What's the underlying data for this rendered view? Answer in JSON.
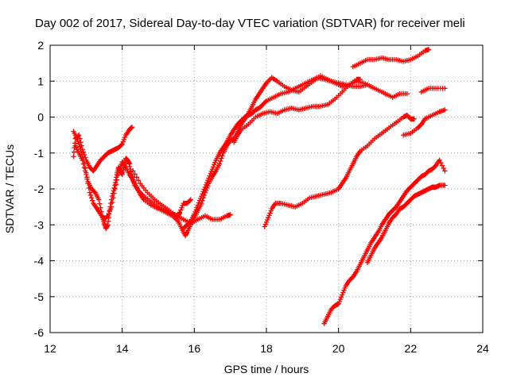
{
  "chart_data": {
    "type": "scatter",
    "title": "Day 002 of 2017, Sidereal Day-to-day VTEC variation (SDTVAR) for receiver meli",
    "xlabel": "GPS time / hours",
    "ylabel": "SDTVAR / TECUs",
    "xlim": [
      12,
      24
    ],
    "ylim": [
      -6,
      2
    ],
    "x_ticks": [
      12,
      14,
      16,
      18,
      20,
      22,
      24
    ],
    "y_ticks": [
      2,
      1,
      0,
      -1,
      -2,
      -3,
      -4,
      -5,
      -6
    ],
    "x_tick_labels": [
      "12",
      "14",
      "16",
      "18",
      "20",
      "22",
      "24"
    ],
    "y_tick_labels": [
      "2",
      "1",
      "0",
      "-1",
      "-2",
      "-3",
      "-4",
      "-5",
      "-6"
    ],
    "grid": true,
    "marker": "+",
    "color": "#ff0000",
    "series": [
      {
        "points": [
          [
            12.65,
            -1.1
          ],
          [
            12.7,
            -0.6
          ],
          [
            12.8,
            -0.5
          ],
          [
            12.9,
            -0.9
          ],
          [
            13.0,
            -1.2
          ],
          [
            13.1,
            -1.4
          ],
          [
            13.2,
            -1.5
          ],
          [
            13.3,
            -1.35
          ],
          [
            13.4,
            -1.2
          ],
          [
            13.5,
            -1.1
          ],
          [
            13.6,
            -1.0
          ],
          [
            13.7,
            -0.95
          ],
          [
            13.8,
            -0.9
          ],
          [
            13.9,
            -0.85
          ],
          [
            14.0,
            -0.75
          ],
          [
            14.1,
            -0.5
          ],
          [
            14.2,
            -0.35
          ],
          [
            14.27,
            -0.28
          ]
        ]
      },
      {
        "points": [
          [
            12.65,
            -0.4
          ],
          [
            12.75,
            -0.6
          ],
          [
            12.85,
            -0.9
          ],
          [
            12.95,
            -1.3
          ],
          [
            13.05,
            -1.8
          ],
          [
            13.15,
            -2.0
          ],
          [
            13.25,
            -2.1
          ],
          [
            13.35,
            -2.3
          ],
          [
            13.45,
            -2.75
          ],
          [
            13.5,
            -2.95
          ],
          [
            13.55,
            -3.1
          ],
          [
            13.6,
            -3.0
          ],
          [
            13.65,
            -2.6
          ],
          [
            13.72,
            -2.2
          ],
          [
            13.8,
            -1.9
          ],
          [
            13.85,
            -1.6
          ],
          [
            13.9,
            -1.4
          ],
          [
            13.95,
            -1.5
          ],
          [
            14.0,
            -1.6
          ],
          [
            14.05,
            -1.35
          ],
          [
            14.1,
            -1.15
          ],
          [
            14.15,
            -1.2
          ],
          [
            14.2,
            -1.3
          ],
          [
            14.25,
            -1.6
          ],
          [
            14.3,
            -1.75
          ],
          [
            14.35,
            -1.9
          ],
          [
            14.45,
            -2.05
          ],
          [
            14.6,
            -2.2
          ],
          [
            14.8,
            -2.35
          ],
          [
            15.0,
            -2.5
          ],
          [
            15.2,
            -2.6
          ],
          [
            15.4,
            -2.7
          ],
          [
            15.55,
            -2.75
          ],
          [
            15.6,
            -2.65
          ],
          [
            15.7,
            -2.4
          ],
          [
            15.8,
            -2.4
          ],
          [
            15.9,
            -2.3
          ]
        ]
      },
      {
        "points": [
          [
            12.7,
            -0.8
          ],
          [
            12.8,
            -1.0
          ],
          [
            12.9,
            -1.2
          ],
          [
            13.0,
            -1.6
          ],
          [
            13.1,
            -2.1
          ],
          [
            13.2,
            -2.4
          ],
          [
            13.3,
            -2.55
          ],
          [
            13.4,
            -2.7
          ],
          [
            13.5,
            -2.85
          ],
          [
            13.6,
            -2.75
          ],
          [
            13.7,
            -2.5
          ],
          [
            13.8,
            -2.0
          ],
          [
            13.9,
            -1.5
          ],
          [
            14.0,
            -1.25
          ],
          [
            14.1,
            -1.4
          ],
          [
            14.2,
            -1.6
          ],
          [
            14.3,
            -1.75
          ],
          [
            14.4,
            -1.95
          ],
          [
            14.5,
            -2.15
          ],
          [
            14.6,
            -2.3
          ],
          [
            14.8,
            -2.45
          ],
          [
            15.0,
            -2.55
          ],
          [
            15.2,
            -2.65
          ],
          [
            15.4,
            -2.75
          ],
          [
            15.55,
            -2.9
          ],
          [
            15.65,
            -3.1
          ],
          [
            15.75,
            -3.3
          ],
          [
            15.8,
            -3.2
          ],
          [
            15.9,
            -3.0
          ],
          [
            16.0,
            -2.8
          ],
          [
            16.1,
            -2.6
          ],
          [
            16.2,
            -2.4
          ],
          [
            16.3,
            -2.1
          ],
          [
            16.4,
            -1.85
          ],
          [
            16.5,
            -1.65
          ],
          [
            16.6,
            -1.5
          ],
          [
            16.7,
            -1.3
          ],
          [
            16.8,
            -1.0
          ],
          [
            16.9,
            -0.8
          ],
          [
            17.0,
            -0.65
          ],
          [
            17.1,
            -0.6
          ],
          [
            17.2,
            -0.4
          ],
          [
            17.3,
            -0.2
          ],
          [
            17.4,
            -0.05
          ],
          [
            17.5,
            0.1
          ],
          [
            17.6,
            0.3
          ],
          [
            17.7,
            0.5
          ],
          [
            17.8,
            0.65
          ],
          [
            17.9,
            0.8
          ],
          [
            18.0,
            0.95
          ],
          [
            18.15,
            1.1
          ],
          [
            18.3,
            1.0
          ],
          [
            18.5,
            0.85
          ],
          [
            18.7,
            0.75
          ],
          [
            18.9,
            0.7
          ],
          [
            19.1,
            0.85
          ],
          [
            19.3,
            1.0
          ],
          [
            19.5,
            1.15
          ],
          [
            19.7,
            1.05
          ],
          [
            19.9,
            0.95
          ],
          [
            20.1,
            0.85
          ],
          [
            20.3,
            0.9
          ],
          [
            20.5,
            1.0
          ],
          [
            20.7,
            0.95
          ],
          [
            20.9,
            0.85
          ],
          [
            21.1,
            0.75
          ],
          [
            21.3,
            0.65
          ],
          [
            21.5,
            0.55
          ],
          [
            21.7,
            0.65
          ],
          [
            21.9,
            0.65
          ]
        ]
      },
      {
        "points": [
          [
            14.3,
            -1.5
          ],
          [
            14.5,
            -1.85
          ],
          [
            14.7,
            -2.1
          ],
          [
            14.9,
            -2.3
          ],
          [
            15.1,
            -2.45
          ],
          [
            15.3,
            -2.6
          ],
          [
            15.5,
            -2.75
          ],
          [
            15.7,
            -2.85
          ],
          [
            15.9,
            -2.95
          ],
          [
            16.1,
            -2.85
          ],
          [
            16.3,
            -2.75
          ],
          [
            16.5,
            -2.85
          ],
          [
            16.7,
            -2.85
          ],
          [
            16.9,
            -2.75
          ],
          [
            17.0,
            -2.72
          ]
        ]
      },
      {
        "points": [
          [
            15.7,
            -3.1
          ],
          [
            15.8,
            -3.0
          ],
          [
            15.9,
            -2.9
          ],
          [
            16.0,
            -2.7
          ],
          [
            16.1,
            -2.45
          ],
          [
            16.2,
            -2.2
          ],
          [
            16.3,
            -1.95
          ],
          [
            16.4,
            -1.7
          ],
          [
            16.5,
            -1.45
          ],
          [
            16.6,
            -1.2
          ],
          [
            16.7,
            -1.0
          ],
          [
            16.8,
            -0.85
          ],
          [
            16.9,
            -0.7
          ],
          [
            17.0,
            -0.5
          ],
          [
            17.1,
            -0.35
          ],
          [
            17.2,
            -0.2
          ],
          [
            17.3,
            -0.1
          ],
          [
            17.4,
            0.0
          ],
          [
            17.5,
            0.05
          ],
          [
            17.6,
            0.1
          ],
          [
            17.7,
            0.2
          ],
          [
            17.8,
            0.25
          ],
          [
            17.9,
            0.35
          ],
          [
            18.0,
            0.45
          ],
          [
            18.2,
            0.55
          ],
          [
            18.4,
            0.65
          ],
          [
            18.6,
            0.7
          ],
          [
            18.8,
            0.8
          ],
          [
            19.0,
            0.9
          ],
          [
            19.2,
            1.0
          ],
          [
            19.4,
            1.1
          ],
          [
            19.6,
            1.05
          ],
          [
            19.8,
            1.0
          ],
          [
            20.0,
            0.95
          ],
          [
            20.2,
            0.9
          ],
          [
            20.4,
            0.85
          ],
          [
            20.6,
            0.85
          ],
          [
            20.8,
            0.9
          ]
        ]
      },
      {
        "points": [
          [
            17.1,
            -0.7
          ],
          [
            17.2,
            -0.5
          ],
          [
            17.3,
            -0.35
          ],
          [
            17.5,
            -0.2
          ],
          [
            17.7,
            0.0
          ],
          [
            17.9,
            0.1
          ],
          [
            18.1,
            0.15
          ],
          [
            18.3,
            0.1
          ],
          [
            18.5,
            0.2
          ],
          [
            18.7,
            0.25
          ],
          [
            18.9,
            0.2
          ],
          [
            19.1,
            0.25
          ],
          [
            19.3,
            0.3
          ],
          [
            19.5,
            0.3
          ],
          [
            19.7,
            0.35
          ],
          [
            19.9,
            0.5
          ],
          [
            20.1,
            0.7
          ],
          [
            20.3,
            0.9
          ],
          [
            20.5,
            1.05
          ],
          [
            20.6,
            1.05
          ]
        ]
      },
      {
        "points": [
          [
            20.4,
            1.4
          ],
          [
            20.6,
            1.5
          ],
          [
            20.8,
            1.6
          ],
          [
            21.0,
            1.6
          ],
          [
            21.2,
            1.65
          ],
          [
            21.4,
            1.6
          ],
          [
            21.6,
            1.6
          ],
          [
            21.8,
            1.55
          ],
          [
            22.0,
            1.6
          ],
          [
            22.2,
            1.7
          ],
          [
            22.4,
            1.85
          ],
          [
            22.5,
            1.88
          ]
        ]
      },
      {
        "points": [
          [
            17.95,
            -3.05
          ],
          [
            18.05,
            -2.8
          ],
          [
            18.15,
            -2.55
          ],
          [
            18.25,
            -2.4
          ],
          [
            18.4,
            -2.4
          ],
          [
            18.6,
            -2.45
          ],
          [
            18.8,
            -2.5
          ],
          [
            19.0,
            -2.4
          ],
          [
            19.2,
            -2.25
          ],
          [
            19.4,
            -2.2
          ],
          [
            19.6,
            -2.15
          ],
          [
            19.8,
            -2.1
          ],
          [
            20.0,
            -2.0
          ],
          [
            20.1,
            -1.85
          ],
          [
            20.2,
            -1.7
          ],
          [
            20.3,
            -1.5
          ],
          [
            20.4,
            -1.3
          ],
          [
            20.5,
            -1.1
          ],
          [
            20.6,
            -0.95
          ],
          [
            20.8,
            -0.8
          ],
          [
            21.0,
            -0.6
          ],
          [
            21.2,
            -0.45
          ],
          [
            21.4,
            -0.3
          ],
          [
            21.6,
            -0.15
          ],
          [
            21.8,
            0.0
          ],
          [
            21.9,
            0.05
          ],
          [
            22.0,
            -0.05
          ],
          [
            22.1,
            -0.05
          ]
        ]
      },
      {
        "points": [
          [
            21.8,
            -0.5
          ],
          [
            22.0,
            -0.45
          ],
          [
            22.2,
            -0.3
          ],
          [
            22.3,
            -0.2
          ],
          [
            22.4,
            -0.05
          ],
          [
            22.6,
            0.05
          ],
          [
            22.8,
            0.15
          ],
          [
            22.95,
            0.2
          ]
        ]
      },
      {
        "points": [
          [
            22.3,
            0.7
          ],
          [
            22.5,
            0.8
          ],
          [
            22.7,
            0.8
          ],
          [
            22.95,
            0.8
          ]
        ]
      },
      {
        "points": [
          [
            19.6,
            -5.75
          ],
          [
            19.7,
            -5.55
          ],
          [
            19.8,
            -5.35
          ],
          [
            19.9,
            -5.25
          ],
          [
            20.0,
            -5.2
          ],
          [
            20.1,
            -4.95
          ],
          [
            20.2,
            -4.7
          ],
          [
            20.3,
            -4.55
          ],
          [
            20.4,
            -4.45
          ],
          [
            20.5,
            -4.3
          ],
          [
            20.6,
            -4.1
          ],
          [
            20.7,
            -3.9
          ],
          [
            20.8,
            -3.7
          ],
          [
            20.9,
            -3.5
          ],
          [
            21.0,
            -3.35
          ],
          [
            21.1,
            -3.2
          ],
          [
            21.2,
            -3.0
          ],
          [
            21.3,
            -2.85
          ],
          [
            21.4,
            -2.7
          ],
          [
            21.5,
            -2.6
          ],
          [
            21.6,
            -2.5
          ],
          [
            21.7,
            -2.35
          ],
          [
            21.8,
            -2.2
          ],
          [
            21.9,
            -2.05
          ],
          [
            22.0,
            -1.95
          ],
          [
            22.1,
            -1.85
          ],
          [
            22.2,
            -1.75
          ],
          [
            22.3,
            -1.65
          ],
          [
            22.4,
            -1.6
          ],
          [
            22.5,
            -1.5
          ],
          [
            22.6,
            -1.45
          ],
          [
            22.7,
            -1.35
          ],
          [
            22.8,
            -1.2
          ],
          [
            22.95,
            -1.5
          ]
        ]
      },
      {
        "points": [
          [
            20.8,
            -4.05
          ],
          [
            20.9,
            -3.85
          ],
          [
            21.0,
            -3.65
          ],
          [
            21.1,
            -3.5
          ],
          [
            21.2,
            -3.35
          ],
          [
            21.3,
            -3.15
          ],
          [
            21.4,
            -2.95
          ],
          [
            21.5,
            -2.8
          ],
          [
            21.6,
            -2.7
          ],
          [
            21.7,
            -2.55
          ],
          [
            21.8,
            -2.5
          ],
          [
            21.9,
            -2.4
          ],
          [
            22.0,
            -2.3
          ],
          [
            22.1,
            -2.2
          ],
          [
            22.2,
            -2.15
          ],
          [
            22.3,
            -2.1
          ],
          [
            22.4,
            -2.05
          ],
          [
            22.5,
            -2.0
          ],
          [
            22.6,
            -1.95
          ],
          [
            22.7,
            -1.95
          ],
          [
            22.8,
            -1.9
          ],
          [
            22.95,
            -1.9
          ]
        ]
      }
    ]
  }
}
